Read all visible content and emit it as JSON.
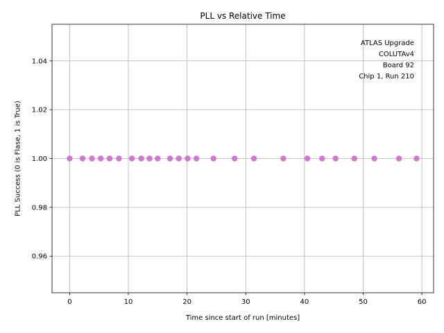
{
  "chart_data": {
    "type": "scatter",
    "title": "PLL vs Relative Time",
    "xlabel": "Time since start of run [minutes]",
    "ylabel": "PLL Success (0 is Flase, 1 is True)",
    "xlim": [
      -3.0,
      62.0
    ],
    "ylim": [
      0.945,
      1.055
    ],
    "xticks": [
      0,
      10,
      20,
      30,
      40,
      50,
      60
    ],
    "yticks": [
      0.96,
      0.98,
      1.0,
      1.02,
      1.04
    ],
    "ytick_labels": [
      "0.96",
      "0.98",
      "1.00",
      "1.02",
      "1.04"
    ],
    "grid": true,
    "marker_color": "#d277d2",
    "annotation": [
      "ATLAS Upgrade",
      "COLUTAv4",
      "Board 92",
      "Chip 1, Run 210"
    ],
    "annotation_placement": "top-right",
    "series": [
      {
        "x": [
          0.0,
          2.2,
          3.8,
          5.3,
          6.8,
          8.4,
          10.6,
          12.2,
          13.6,
          15.0,
          17.1,
          18.6,
          20.1,
          21.6,
          24.5,
          28.1,
          31.4,
          36.4,
          40.5,
          43.0,
          45.3,
          48.5,
          51.9,
          56.1,
          59.1
        ],
        "y": [
          1,
          1,
          1,
          1,
          1,
          1,
          1,
          1,
          1,
          1,
          1,
          1,
          1,
          1,
          1,
          1,
          1,
          1,
          1,
          1,
          1,
          1,
          1,
          1,
          1
        ]
      }
    ]
  }
}
